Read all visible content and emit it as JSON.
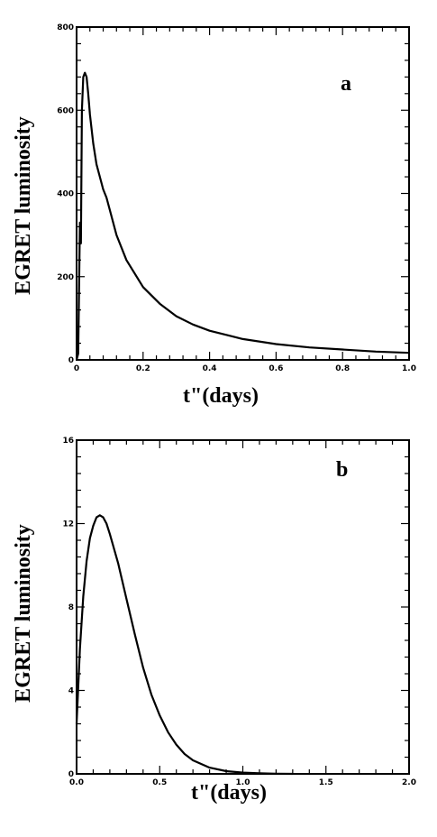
{
  "chart_data": [
    {
      "type": "line",
      "panel_label": "a",
      "xlabel": "t\"(days)",
      "ylabel": "EGRET luminosity",
      "xlim": [
        0,
        1.0
      ],
      "ylim": [
        0,
        800
      ],
      "x_ticks": [
        "0",
        "0.2",
        "0.4",
        "0.6",
        "0.8",
        "1.0"
      ],
      "y_ticks": [
        "0",
        "200",
        "400",
        "600",
        "800"
      ],
      "grid": false,
      "series": [
        {
          "x": [
            0,
            0.005,
            0.01,
            0.013,
            0.016,
            0.02,
            0.025,
            0.03,
            0.035,
            0.04,
            0.05,
            0.06,
            0.07,
            0.08,
            0.09,
            0.1,
            0.12,
            0.15,
            0.2,
            0.25,
            0.3,
            0.35,
            0.4,
            0.5,
            0.6,
            0.7,
            0.8,
            0.9,
            1.0
          ],
          "y": [
            0,
            15,
            330,
            280,
            600,
            680,
            690,
            680,
            640,
            590,
            520,
            470,
            440,
            410,
            390,
            360,
            300,
            240,
            175,
            135,
            105,
            85,
            70,
            50,
            38,
            30,
            25,
            20,
            17
          ]
        }
      ]
    },
    {
      "type": "line",
      "panel_label": "b",
      "xlabel": "t\"(days)",
      "ylabel": "EGRET luminosity",
      "xlim": [
        0,
        2.0
      ],
      "ylim": [
        0,
        16
      ],
      "x_ticks": [
        "0.0",
        "0.5",
        "1.0",
        "1.5",
        "2.0"
      ],
      "y_ticks": [
        "0",
        "4",
        "8",
        "12",
        "16"
      ],
      "grid": false,
      "series": [
        {
          "x": [
            0,
            0.02,
            0.04,
            0.06,
            0.08,
            0.1,
            0.12,
            0.14,
            0.16,
            0.18,
            0.2,
            0.25,
            0.3,
            0.35,
            0.4,
            0.45,
            0.5,
            0.55,
            0.6,
            0.65,
            0.7,
            0.8,
            0.9,
            1.0,
            1.1,
            1.2,
            1.3
          ],
          "y": [
            2.4,
            6.0,
            8.5,
            10.2,
            11.3,
            11.9,
            12.3,
            12.4,
            12.3,
            12.0,
            11.5,
            10.1,
            8.4,
            6.7,
            5.1,
            3.8,
            2.8,
            2.0,
            1.4,
            0.95,
            0.65,
            0.3,
            0.13,
            0.06,
            0.03,
            0.01,
            0.0
          ]
        }
      ]
    }
  ]
}
